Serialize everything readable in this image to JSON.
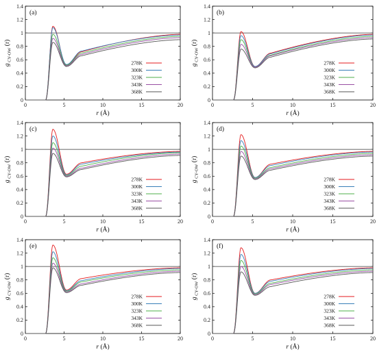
{
  "legend_temps": [
    "278K",
    "300K",
    "323K",
    "343K",
    "368K"
  ],
  "chart_data": [
    {
      "type": "line",
      "panel": "(a)",
      "ylabel_main": "g",
      "ylabel_sub": "CY-OW",
      "ylabel_tail": "(r)",
      "xlabel_italic": "r",
      "xlabel_unit": " (Å)",
      "xlim": [
        0,
        20
      ],
      "ylim": [
        0,
        1.4
      ],
      "xticks": [
        "0",
        "5",
        "10",
        "15",
        "20"
      ],
      "yticks": [
        "0",
        "0.2",
        "0.4",
        "0.6",
        "0.8",
        "1",
        "1.2",
        "1.4"
      ],
      "reference_line_y": 1.0,
      "grid": false,
      "legend_position": "bottom-right",
      "series": [
        {
          "name": "278K",
          "color": "#e41a1c",
          "peak": 1.1,
          "min": 0.52,
          "shoulder": 0.72,
          "tail": 0.98
        },
        {
          "name": "300K",
          "color": "#377eb8",
          "peak": 1.08,
          "min": 0.53,
          "shoulder": 0.73,
          "tail": 0.97
        },
        {
          "name": "323K",
          "color": "#4daf4a",
          "peak": 0.98,
          "min": 0.52,
          "shoulder": 0.7,
          "tail": 0.95
        },
        {
          "name": "343K",
          "color": "#984ea3",
          "peak": 0.92,
          "min": 0.51,
          "shoulder": 0.68,
          "tail": 0.93
        },
        {
          "name": "368K",
          "color": "#555555",
          "peak": 0.86,
          "min": 0.5,
          "shoulder": 0.66,
          "tail": 0.9
        }
      ]
    },
    {
      "type": "line",
      "panel": "(b)",
      "ylabel_main": "g",
      "ylabel_sub": "CY-OW",
      "ylabel_tail": "(r)",
      "xlabel_italic": "r",
      "xlabel_unit": " (Å)",
      "xlim": [
        0,
        20
      ],
      "ylim": [
        0,
        1.4
      ],
      "xticks": [
        "0",
        "5",
        "10",
        "15",
        "20"
      ],
      "yticks": [
        "0",
        "0.2",
        "0.4",
        "0.6",
        "0.8",
        "1",
        "1.2",
        "1.4"
      ],
      "reference_line_y": 1.0,
      "grid": false,
      "legend_position": "bottom-right",
      "series": [
        {
          "name": "278K",
          "color": "#e41a1c",
          "peak": 1.02,
          "min": 0.5,
          "shoulder": 0.7,
          "tail": 0.98
        },
        {
          "name": "300K",
          "color": "#377eb8",
          "peak": 0.96,
          "min": 0.5,
          "shoulder": 0.69,
          "tail": 0.97
        },
        {
          "name": "323K",
          "color": "#4daf4a",
          "peak": 0.9,
          "min": 0.49,
          "shoulder": 0.67,
          "tail": 0.95
        },
        {
          "name": "343K",
          "color": "#984ea3",
          "peak": 0.83,
          "min": 0.49,
          "shoulder": 0.66,
          "tail": 0.93
        },
        {
          "name": "368K",
          "color": "#555555",
          "peak": 0.76,
          "min": 0.48,
          "shoulder": 0.64,
          "tail": 0.91
        }
      ]
    },
    {
      "type": "line",
      "panel": "(c)",
      "ylabel_main": "g",
      "ylabel_sub": "CY-OW",
      "ylabel_tail": "(r)",
      "xlabel_italic": "r",
      "xlabel_unit": " (Å)",
      "xlim": [
        0,
        20
      ],
      "ylim": [
        0,
        1.4
      ],
      "xticks": [
        "0",
        "5",
        "10",
        "15",
        "20"
      ],
      "yticks": [
        "0",
        "0.2",
        "0.4",
        "0.6",
        "0.8",
        "1",
        "1.2",
        "1.4"
      ],
      "reference_line_y": 1.0,
      "grid": false,
      "legend_position": "bottom-right",
      "series": [
        {
          "name": "278K",
          "color": "#e41a1c",
          "peak": 1.3,
          "min": 0.63,
          "shoulder": 0.8,
          "tail": 0.97
        },
        {
          "name": "300K",
          "color": "#377eb8",
          "peak": 1.2,
          "min": 0.62,
          "shoulder": 0.78,
          "tail": 0.96
        },
        {
          "name": "323K",
          "color": "#4daf4a",
          "peak": 1.1,
          "min": 0.61,
          "shoulder": 0.75,
          "tail": 0.95
        },
        {
          "name": "343K",
          "color": "#984ea3",
          "peak": 1.02,
          "min": 0.6,
          "shoulder": 0.72,
          "tail": 0.93
        },
        {
          "name": "368K",
          "color": "#555555",
          "peak": 0.94,
          "min": 0.59,
          "shoulder": 0.7,
          "tail": 0.91
        }
      ]
    },
    {
      "type": "line",
      "panel": "(d)",
      "ylabel_main": "g",
      "ylabel_sub": "CY-OW",
      "ylabel_tail": "(r)",
      "xlabel_italic": "r",
      "xlabel_unit": " (Å)",
      "xlim": [
        0,
        20
      ],
      "ylim": [
        0,
        1.4
      ],
      "xticks": [
        "0",
        "5",
        "10",
        "15",
        "20"
      ],
      "yticks": [
        "0",
        "0.2",
        "0.4",
        "0.6",
        "0.8",
        "1",
        "1.2",
        "1.4"
      ],
      "reference_line_y": 1.0,
      "grid": false,
      "legend_position": "bottom-right",
      "series": [
        {
          "name": "278K",
          "color": "#e41a1c",
          "peak": 1.22,
          "min": 0.58,
          "shoulder": 0.78,
          "tail": 0.97
        },
        {
          "name": "300K",
          "color": "#377eb8",
          "peak": 1.13,
          "min": 0.58,
          "shoulder": 0.76,
          "tail": 0.96
        },
        {
          "name": "323K",
          "color": "#4daf4a",
          "peak": 1.05,
          "min": 0.57,
          "shoulder": 0.73,
          "tail": 0.94
        },
        {
          "name": "343K",
          "color": "#984ea3",
          "peak": 0.97,
          "min": 0.56,
          "shoulder": 0.71,
          "tail": 0.92
        },
        {
          "name": "368K",
          "color": "#555555",
          "peak": 0.9,
          "min": 0.55,
          "shoulder": 0.69,
          "tail": 0.9
        }
      ]
    },
    {
      "type": "line",
      "panel": "(e)",
      "ylabel_main": "g",
      "ylabel_sub": "CY-OW",
      "ylabel_tail": "(r)",
      "xlabel_italic": "r",
      "xlabel_unit": " (Å)",
      "xlim": [
        0,
        20
      ],
      "ylim": [
        0,
        1.4
      ],
      "xticks": [
        "0",
        "5",
        "10",
        "15",
        "20"
      ],
      "yticks": [
        "0",
        "0.2",
        "0.4",
        "0.6",
        "0.8",
        "1",
        "1.2",
        "1.4"
      ],
      "reference_line_y": 1.0,
      "grid": false,
      "legend_position": "bottom-right",
      "series": [
        {
          "name": "278K",
          "color": "#e41a1c",
          "peak": 1.32,
          "min": 0.65,
          "shoulder": 0.82,
          "tail": 0.98
        },
        {
          "name": "300K",
          "color": "#377eb8",
          "peak": 1.22,
          "min": 0.64,
          "shoulder": 0.79,
          "tail": 0.97
        },
        {
          "name": "323K",
          "color": "#4daf4a",
          "peak": 1.13,
          "min": 0.63,
          "shoulder": 0.77,
          "tail": 0.95
        },
        {
          "name": "343K",
          "color": "#984ea3",
          "peak": 1.05,
          "min": 0.62,
          "shoulder": 0.74,
          "tail": 0.93
        },
        {
          "name": "368K",
          "color": "#555555",
          "peak": 0.98,
          "min": 0.61,
          "shoulder": 0.72,
          "tail": 0.91
        }
      ]
    },
    {
      "type": "line",
      "panel": "(f)",
      "ylabel_main": "g",
      "ylabel_sub": "CY-OW",
      "ylabel_tail": "(r)",
      "xlabel_italic": "r",
      "xlabel_unit": " (Å)",
      "xlim": [
        0,
        20
      ],
      "ylim": [
        0,
        1.4
      ],
      "xticks": [
        "0",
        "5",
        "10",
        "15",
        "20"
      ],
      "yticks": [
        "0",
        "0.2",
        "0.4",
        "0.6",
        "0.8",
        "1",
        "1.2",
        "1.4"
      ],
      "reference_line_y": 1.0,
      "grid": false,
      "legend_position": "bottom-right",
      "series": [
        {
          "name": "278K",
          "color": "#e41a1c",
          "peak": 1.28,
          "min": 0.6,
          "shoulder": 0.8,
          "tail": 0.98
        },
        {
          "name": "300K",
          "color": "#377eb8",
          "peak": 1.18,
          "min": 0.6,
          "shoulder": 0.78,
          "tail": 0.97
        },
        {
          "name": "323K",
          "color": "#4daf4a",
          "peak": 1.09,
          "min": 0.59,
          "shoulder": 0.75,
          "tail": 0.95
        },
        {
          "name": "343K",
          "color": "#984ea3",
          "peak": 1.0,
          "min": 0.58,
          "shoulder": 0.73,
          "tail": 0.93
        },
        {
          "name": "368K",
          "color": "#555555",
          "peak": 0.92,
          "min": 0.57,
          "shoulder": 0.7,
          "tail": 0.91
        }
      ]
    }
  ]
}
